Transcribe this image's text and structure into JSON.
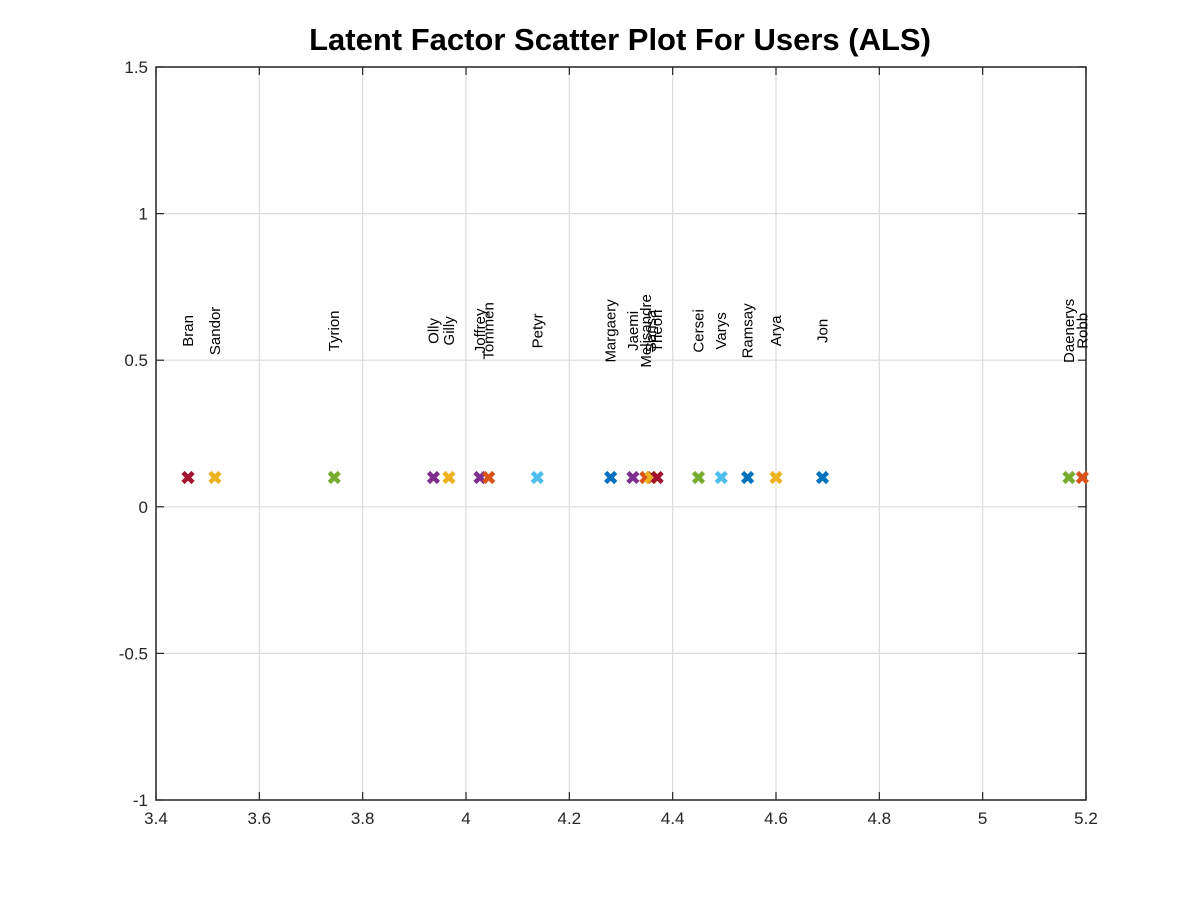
{
  "chart_data": {
    "type": "scatter",
    "title": "Latent Factor Scatter Plot For Users (ALS)",
    "xlabel": "",
    "ylabel": "",
    "xlim": [
      3.4,
      5.2
    ],
    "ylim": [
      -1,
      1.5
    ],
    "xticks": [
      "3.4",
      "3.6",
      "3.8",
      "4",
      "4.2",
      "4.4",
      "4.6",
      "4.8",
      "5",
      "5.2"
    ],
    "yticks": [
      "-1",
      "-0.5",
      "0",
      "0.5",
      "1",
      "1.5"
    ],
    "grid": true,
    "marker": "x",
    "label_offset_y": 0.5,
    "points": [
      {
        "label": "Bran",
        "x": 3.462,
        "y": 0.1,
        "color": "#A2142F"
      },
      {
        "label": "Sandor",
        "x": 3.514,
        "y": 0.1,
        "color": "#EDB120"
      },
      {
        "label": "Tyrion",
        "x": 3.745,
        "y": 0.1,
        "color": "#77AC30"
      },
      {
        "label": "Olly",
        "x": 3.937,
        "y": 0.1,
        "color": "#7E2F8E"
      },
      {
        "label": "Gilly",
        "x": 3.967,
        "y": 0.1,
        "color": "#EDB120"
      },
      {
        "label": "Joffrey",
        "x": 4.027,
        "y": 0.1,
        "color": "#7E2F8E"
      },
      {
        "label": "Tommen",
        "x": 4.044,
        "y": 0.1,
        "color": "#D95319"
      },
      {
        "label": "Petyr",
        "x": 4.138,
        "y": 0.1,
        "color": "#4DBEEE"
      },
      {
        "label": "Margaery",
        "x": 4.28,
        "y": 0.1,
        "color": "#0072BD"
      },
      {
        "label": "Jaemi",
        "x": 4.323,
        "y": 0.1,
        "color": "#7E2F8E"
      },
      {
        "label": "Melisandre",
        "x": 4.348,
        "y": 0.1,
        "color": "#D95319"
      },
      {
        "label": "Sansa",
        "x": 4.358,
        "y": 0.1,
        "color": "#EDB120"
      },
      {
        "label": "Theon",
        "x": 4.37,
        "y": 0.1,
        "color": "#A2142F"
      },
      {
        "label": "Cersei",
        "x": 4.45,
        "y": 0.1,
        "color": "#77AC30"
      },
      {
        "label": "Varys",
        "x": 4.494,
        "y": 0.1,
        "color": "#4DBEEE"
      },
      {
        "label": "Ramsay",
        "x": 4.545,
        "y": 0.1,
        "color": "#0072BD"
      },
      {
        "label": "Arya",
        "x": 4.6,
        "y": 0.1,
        "color": "#EDB120"
      },
      {
        "label": "Jon",
        "x": 4.69,
        "y": 0.1,
        "color": "#0072BD"
      },
      {
        "label": "Daenerys",
        "x": 5.167,
        "y": 0.1,
        "color": "#77AC30"
      },
      {
        "label": "Robb",
        "x": 5.193,
        "y": 0.1,
        "color": "#D95319"
      }
    ]
  }
}
